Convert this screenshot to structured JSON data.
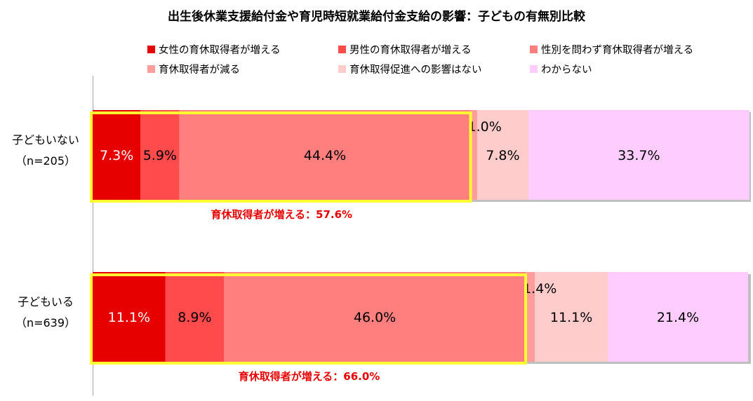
{
  "chart_data": {
    "type": "bar",
    "orientation": "horizontal",
    "stacked": true,
    "title": "出生後休業支援給付金や育児時短就業給付金支給の影響：子どもの有無別比較",
    "xlim": [
      0,
      100
    ],
    "legend_position": "top",
    "categories": [
      {
        "label": "子どもいない",
        "sublabel": "（n=205）"
      },
      {
        "label": "子どもいる",
        "sublabel": "（n=639）"
      }
    ],
    "series": [
      {
        "name": "女性の育休取得者が増える",
        "color": "#e60000",
        "values": [
          7.3,
          11.1
        ],
        "labels": [
          "7.3%",
          "11.1%"
        ],
        "label_color": "#ffffff"
      },
      {
        "name": "男性の育休取得者が増える",
        "color": "#ff4b4b",
        "values": [
          5.9,
          8.9
        ],
        "labels": [
          "5.9%",
          "8.9%"
        ],
        "label_color": "#000000"
      },
      {
        "name": "性別を問わず育休取得者が増える",
        "color": "#ff7f7f",
        "values": [
          44.4,
          46.0
        ],
        "labels": [
          "44.4%",
          "46.0%"
        ],
        "label_color": "#000000"
      },
      {
        "name": "育休取得者が減る",
        "color": "#ff9c9c",
        "values": [
          1.0,
          1.4
        ],
        "labels": [
          "1.0%",
          "1.4%"
        ],
        "label_color": "#000000"
      },
      {
        "name": "育休取得促進への影響はない",
        "color": "#ffcccc",
        "values": [
          7.8,
          11.1
        ],
        "labels": [
          "7.8%",
          "11.1%"
        ],
        "label_color": "#000000"
      },
      {
        "name": "わからない",
        "color": "#ffccff",
        "values": [
          33.7,
          21.4
        ],
        "labels": [
          "33.7%",
          "21.4%"
        ],
        "label_color": "#000000"
      }
    ],
    "annotations": [
      {
        "text": "育休取得者が増える：57.6%",
        "category_index": 0,
        "value": 57.6,
        "color": "#e60000"
      },
      {
        "text": "育休取得者が増える：66.0%",
        "category_index": 1,
        "value": 66.0,
        "color": "#e60000"
      }
    ],
    "highlight_color": "#ffff33"
  }
}
